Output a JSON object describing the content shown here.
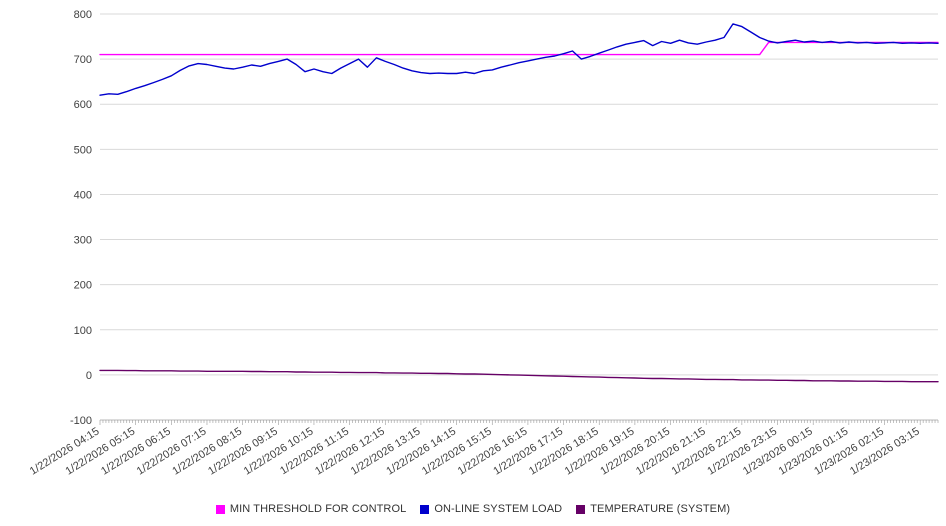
{
  "chart_data": {
    "type": "line",
    "title": "",
    "xlabel": "",
    "ylabel": "",
    "ylim": [
      -100,
      800
    ],
    "y_tick_interval": 100,
    "grid": "horizontal",
    "legend_position": "bottom",
    "x_step_minutes": 15,
    "points_per_label": 4,
    "x_tick_labels": [
      "1/22/2026 04:15",
      "1/22/2026 05:15",
      "1/22/2026 06:15",
      "1/22/2026 07:15",
      "1/22/2026 08:15",
      "1/22/2026 09:15",
      "1/22/2026 10:15",
      "1/22/2026 11:15",
      "1/22/2026 12:15",
      "1/22/2026 13:15",
      "1/22/2026 14:15",
      "1/22/2026 15:15",
      "1/22/2026 16:15",
      "1/22/2026 17:15",
      "1/22/2026 18:15",
      "1/22/2026 19:15",
      "1/22/2026 20:15",
      "1/22/2026 21:15",
      "1/22/2026 22:15",
      "1/22/2026 23:15",
      "1/23/2026 00:15",
      "1/23/2026 01:15",
      "1/23/2026 02:15",
      "1/23/2026 03:15"
    ],
    "series": [
      {
        "name": "MIN THRESHOLD FOR CONTROL",
        "color": "#ff00ff",
        "values": [
          710,
          710,
          710,
          710,
          710,
          710,
          710,
          710,
          710,
          710,
          710,
          710,
          710,
          710,
          710,
          710,
          710,
          710,
          710,
          710,
          710,
          710,
          710,
          710,
          710,
          710,
          710,
          710,
          710,
          710,
          710,
          710,
          710,
          710,
          710,
          710,
          710,
          710,
          710,
          710,
          710,
          710,
          710,
          710,
          710,
          710,
          710,
          710,
          710,
          710,
          710,
          710,
          710,
          710,
          710,
          710,
          710,
          710,
          710,
          710,
          710,
          710,
          710,
          710,
          710,
          710,
          710,
          710,
          710,
          710,
          710,
          710,
          710,
          710,
          710,
          737,
          737,
          737,
          737,
          737,
          737,
          737,
          737,
          737,
          737,
          737,
          737,
          737,
          737,
          737,
          737,
          737,
          737,
          737,
          737
        ]
      },
      {
        "name": "ON-LINE SYSTEM LOAD",
        "color": "#0000cd",
        "values": [
          620,
          623,
          622,
          628,
          635,
          641,
          648,
          655,
          663,
          675,
          685,
          690,
          688,
          684,
          680,
          678,
          682,
          687,
          684,
          690,
          695,
          700,
          688,
          672,
          678,
          672,
          668,
          680,
          690,
          700,
          682,
          703,
          695,
          688,
          680,
          674,
          670,
          668,
          669,
          668,
          668,
          671,
          668,
          674,
          676,
          682,
          687,
          692,
          696,
          700,
          704,
          707,
          712,
          718,
          700,
          706,
          713,
          720,
          727,
          733,
          737,
          741,
          730,
          739,
          735,
          742,
          736,
          733,
          738,
          742,
          748,
          778,
          772,
          760,
          748,
          740,
          736,
          739,
          742,
          738,
          740,
          737,
          739,
          736,
          738,
          736,
          737,
          735,
          736,
          737,
          735,
          736,
          735,
          736,
          735
        ]
      },
      {
        "name": "TEMPERATURE (SYSTEM)",
        "color": "#660066",
        "values": [
          10,
          10,
          10,
          9.5,
          9.5,
          9,
          9,
          9,
          9,
          8.5,
          8.5,
          8.5,
          8,
          8,
          8,
          8,
          8,
          7.5,
          7.5,
          7,
          7,
          7,
          6.5,
          6.5,
          6,
          6,
          6,
          5.5,
          5.5,
          5,
          5,
          5,
          4.5,
          4.5,
          4,
          4,
          3.5,
          3.5,
          3,
          3,
          2.5,
          2,
          2,
          1.5,
          1,
          0.5,
          0,
          -0.5,
          -1,
          -1.5,
          -2,
          -2.5,
          -3,
          -3.5,
          -4,
          -4.5,
          -5,
          -5.5,
          -6,
          -6.5,
          -7,
          -7.5,
          -8,
          -8,
          -8.5,
          -9,
          -9,
          -9.5,
          -10,
          -10,
          -10.5,
          -10.5,
          -11,
          -11,
          -11.5,
          -11.5,
          -12,
          -12,
          -12.5,
          -12.5,
          -13,
          -13,
          -13,
          -13.5,
          -13.5,
          -14,
          -14,
          -14,
          -14.5,
          -14.5,
          -14.5,
          -15,
          -15,
          -15,
          -15
        ]
      }
    ]
  },
  "legend": {
    "items": [
      {
        "label": "MIN THRESHOLD FOR CONTROL",
        "color": "#ff00ff"
      },
      {
        "label": "ON-LINE SYSTEM LOAD",
        "color": "#0000cd"
      },
      {
        "label": "TEMPERATURE (SYSTEM)",
        "color": "#660066"
      }
    ]
  },
  "style": {
    "gridline_color": "#d9d9d9",
    "tick_color": "#999999",
    "axis_text_color": "#404040",
    "background": "#ffffff"
  }
}
